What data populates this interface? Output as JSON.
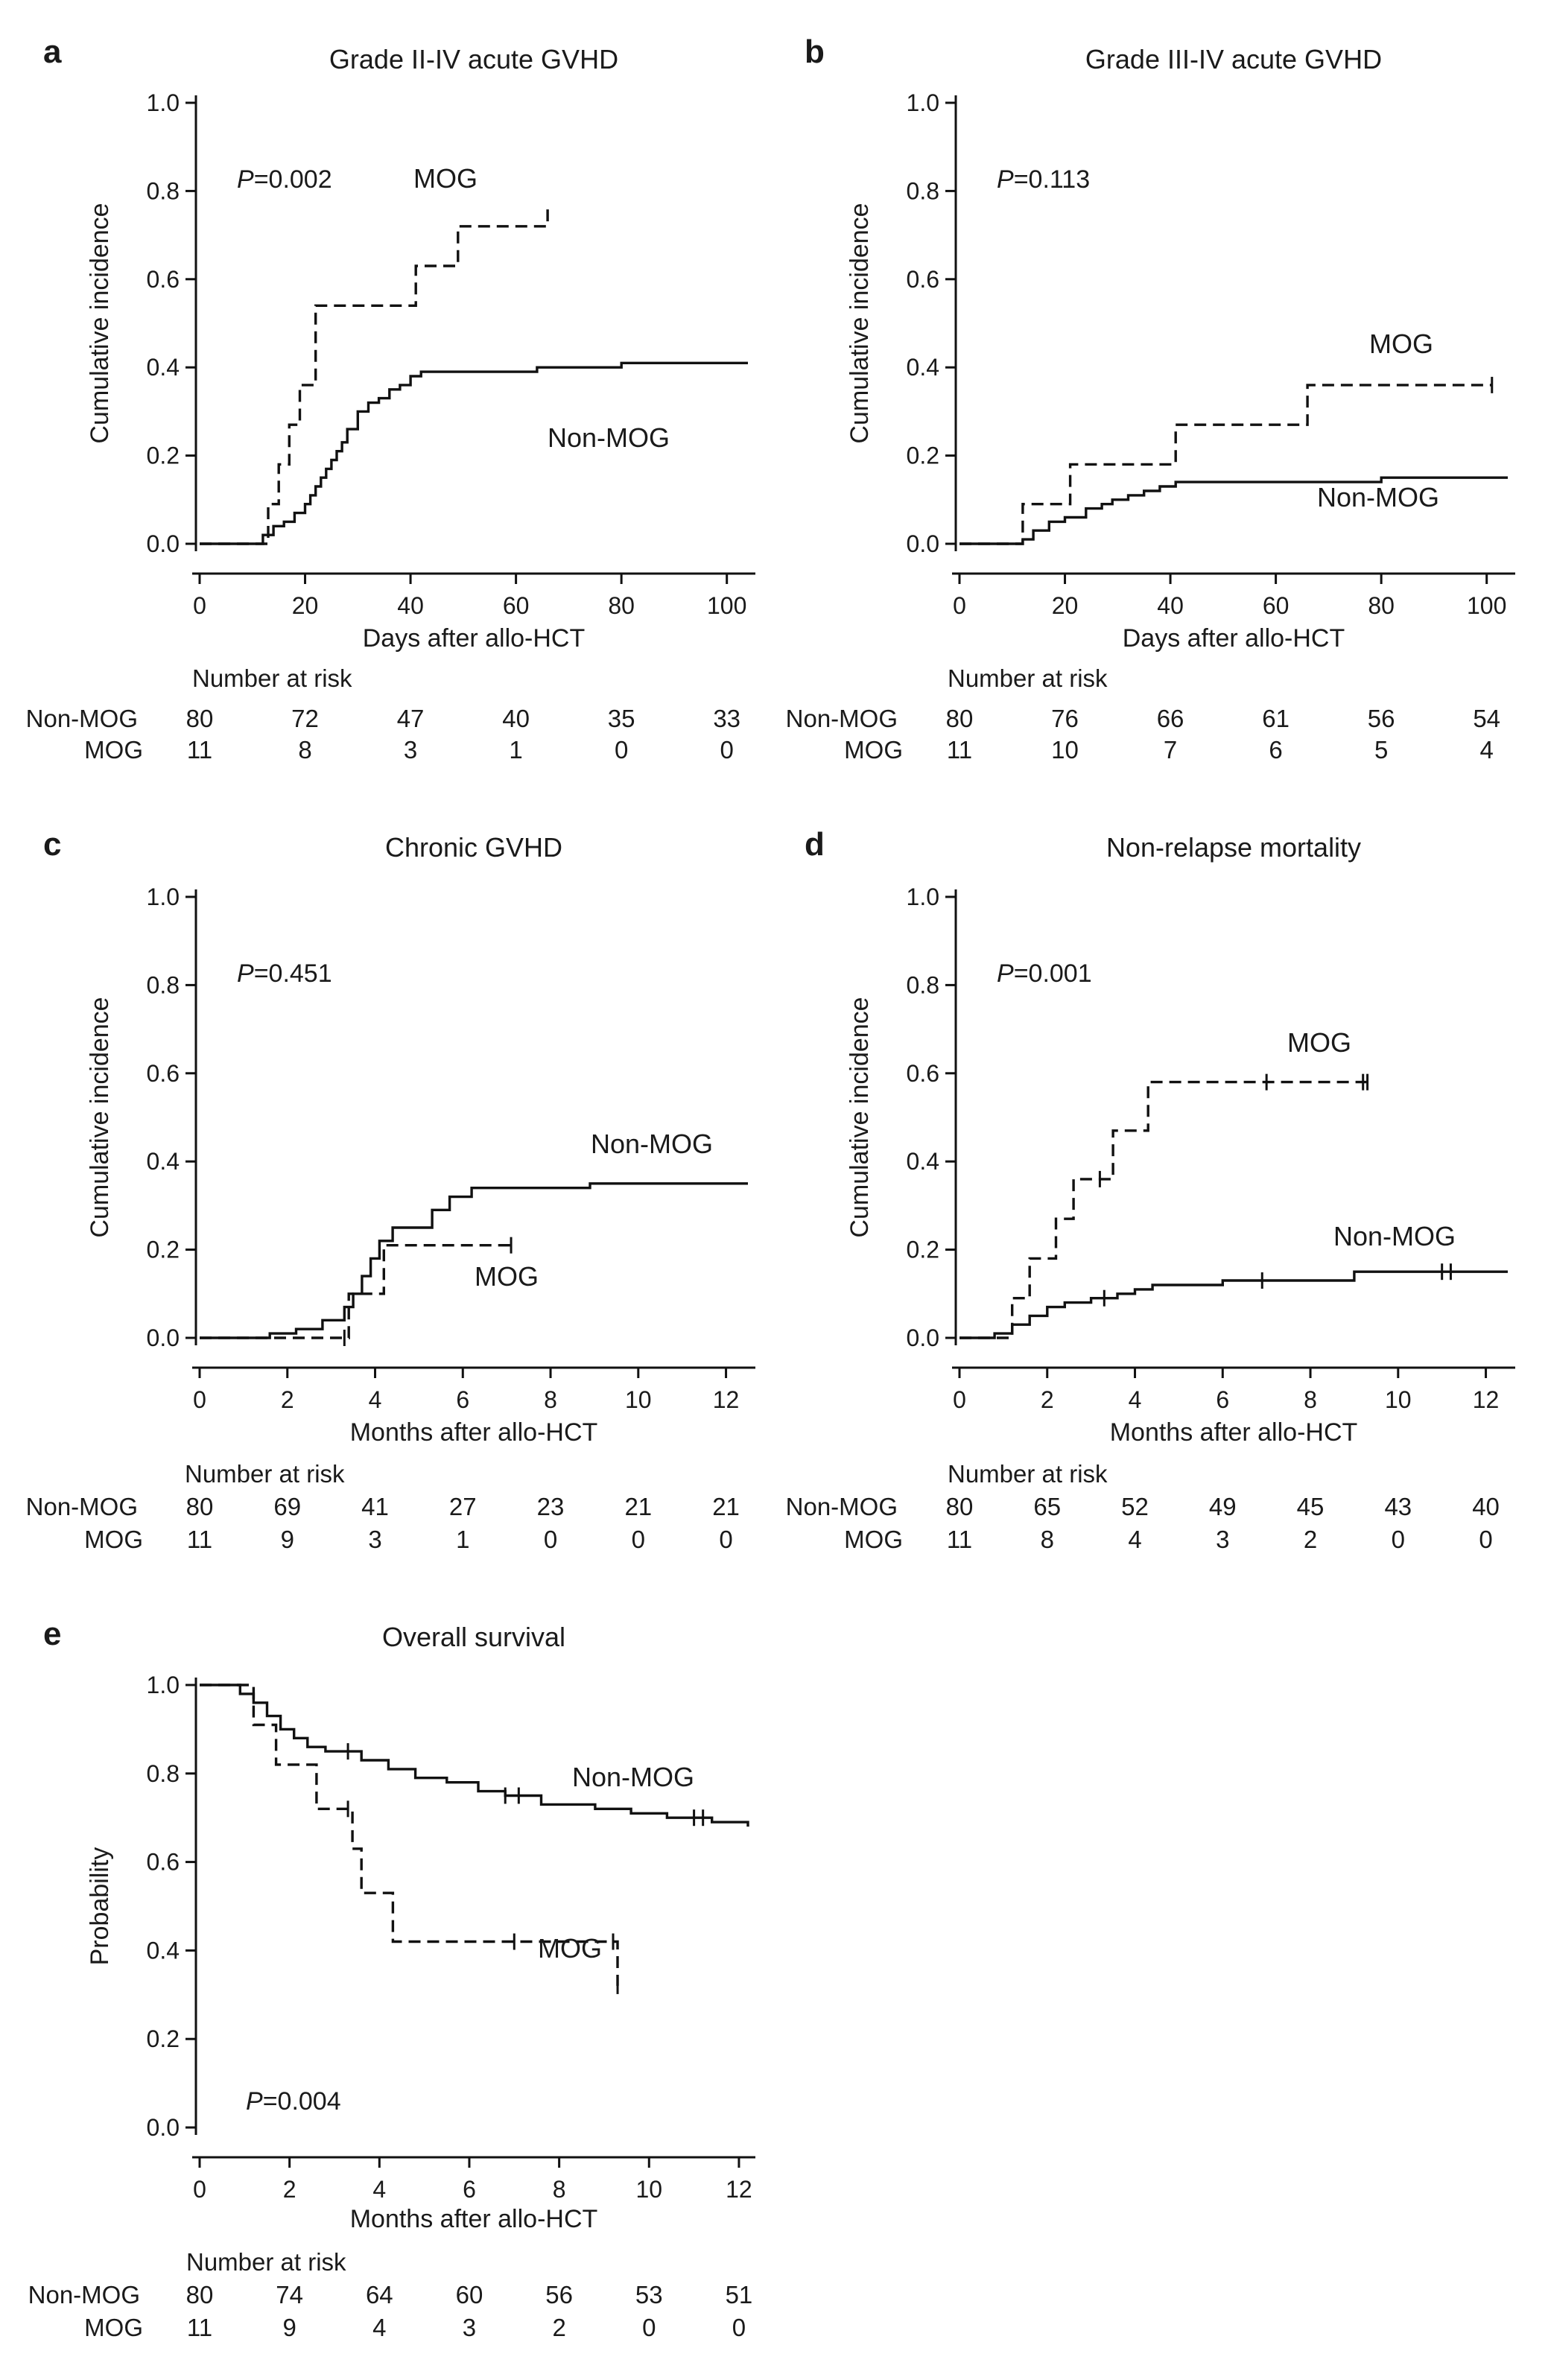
{
  "chart_data": [
    {
      "type": "line",
      "step": true,
      "panel": "a",
      "title": "Grade II-IV acute GVHD",
      "xlabel": "Days after allo-HCT",
      "ylabel": "Cumulative incidence",
      "xlim": [
        0,
        104
      ],
      "ylim": [
        0,
        1.0
      ],
      "xticks": [
        0,
        20,
        40,
        60,
        80,
        100
      ],
      "yticks": [
        0.0,
        0.2,
        0.4,
        0.6,
        0.8,
        1.0
      ],
      "xtick_labels": [
        "0",
        "20",
        "40",
        "60",
        "80",
        "100"
      ],
      "ytick_labels": [
        "0.0",
        "0.2",
        "0.4",
        "0.6",
        "0.8",
        "1.0"
      ],
      "p_prefix": "P",
      "p_value": "=0.002",
      "series": [
        {
          "name": "Non-MOG",
          "style": "solid",
          "x": [
            0,
            12,
            14,
            16,
            18,
            20,
            21,
            22,
            23,
            24,
            25,
            26,
            27,
            28,
            30,
            32,
            34,
            36,
            38,
            40,
            42,
            55,
            64,
            80,
            104
          ],
          "y": [
            0,
            0.02,
            0.04,
            0.05,
            0.07,
            0.09,
            0.11,
            0.13,
            0.15,
            0.17,
            0.19,
            0.21,
            0.23,
            0.26,
            0.3,
            0.32,
            0.33,
            0.35,
            0.36,
            0.38,
            0.39,
            0.39,
            0.4,
            0.41,
            0.41
          ],
          "censor_x": []
        },
        {
          "name": "MOG",
          "style": "dashed",
          "x": [
            0,
            13,
            15,
            17,
            19,
            22,
            41,
            49,
            66
          ],
          "y": [
            0,
            0.09,
            0.18,
            0.27,
            0.36,
            0.54,
            0.63,
            0.72,
            0.77
          ],
          "censor_x": []
        }
      ],
      "label_non_mog": "Non-MOG",
      "label_mog": "MOG",
      "risk_title": "Number at risk",
      "risk_x": [
        0,
        20,
        40,
        60,
        80,
        100
      ],
      "risk_non_mog_name": "Non-MOG",
      "risk_mog_name": "MOG",
      "risk_non_mog": [
        "80",
        "72",
        "47",
        "40",
        "35",
        "33"
      ],
      "risk_mog": [
        "11",
        "8",
        "3",
        "1",
        "0",
        "0"
      ]
    },
    {
      "type": "line",
      "step": true,
      "panel": "b",
      "title": "Grade III-IV acute GVHD",
      "xlabel": "Days after allo-HCT",
      "ylabel": "Cumulative incidence",
      "xlim": [
        0,
        104
      ],
      "ylim": [
        0,
        1.0
      ],
      "xticks": [
        0,
        20,
        40,
        60,
        80,
        100
      ],
      "yticks": [
        0.0,
        0.2,
        0.4,
        0.6,
        0.8,
        1.0
      ],
      "xtick_labels": [
        "0",
        "20",
        "40",
        "60",
        "80",
        "100"
      ],
      "ytick_labels": [
        "0.0",
        "0.2",
        "0.4",
        "0.6",
        "0.8",
        "1.0"
      ],
      "p_prefix": "P",
      "p_value": "=0.113",
      "series": [
        {
          "name": "Non-MOG",
          "style": "solid",
          "x": [
            0,
            12,
            14,
            17,
            20,
            24,
            27,
            29,
            32,
            35,
            38,
            41,
            55,
            80,
            104
          ],
          "y": [
            0,
            0.01,
            0.03,
            0.05,
            0.06,
            0.08,
            0.09,
            0.1,
            0.11,
            0.12,
            0.13,
            0.14,
            0.14,
            0.15,
            0.15
          ],
          "censor_x": []
        },
        {
          "name": "MOG",
          "style": "dashed",
          "x": [
            0,
            12,
            21,
            41,
            66,
            101
          ],
          "y": [
            0,
            0.09,
            0.18,
            0.27,
            0.36,
            0.36
          ],
          "censor_x": [
            101
          ]
        }
      ],
      "label_non_mog": "Non-MOG",
      "label_mog": "MOG",
      "risk_title": "Number at risk",
      "risk_x": [
        0,
        20,
        40,
        60,
        80,
        100
      ],
      "risk_non_mog_name": "Non-MOG",
      "risk_mog_name": "MOG",
      "risk_non_mog": [
        "80",
        "76",
        "66",
        "61",
        "56",
        "54"
      ],
      "risk_mog": [
        "11",
        "10",
        "7",
        "6",
        "5",
        "4"
      ]
    },
    {
      "type": "line",
      "step": true,
      "panel": "c",
      "title": "Chronic GVHD",
      "xlabel": "Months after allo-HCT",
      "ylabel": "Cumulative incidence",
      "xlim": [
        0,
        12.5
      ],
      "ylim": [
        0,
        1.0
      ],
      "xticks": [
        0,
        2,
        4,
        6,
        8,
        10,
        12
      ],
      "yticks": [
        0.0,
        0.2,
        0.4,
        0.6,
        0.8,
        1.0
      ],
      "xtick_labels": [
        "0",
        "2",
        "4",
        "6",
        "8",
        "10",
        "12"
      ],
      "ytick_labels": [
        "0.0",
        "0.2",
        "0.4",
        "0.6",
        "0.8",
        "1.0"
      ],
      "p_prefix": "P",
      "p_value": "=0.451",
      "series": [
        {
          "name": "Non-MOG",
          "style": "solid",
          "x": [
            0,
            1.6,
            2.2,
            2.8,
            3.3,
            3.5,
            3.7,
            3.9,
            4.1,
            4.4,
            5.3,
            5.7,
            6.2,
            8.9,
            12.5
          ],
          "y": [
            0,
            0.01,
            0.02,
            0.04,
            0.07,
            0.1,
            0.14,
            0.18,
            0.22,
            0.25,
            0.29,
            0.32,
            0.34,
            0.35,
            0.35
          ],
          "censor_x": []
        },
        {
          "name": "MOG",
          "style": "dashed",
          "x": [
            0,
            1.8,
            3.4,
            4.2,
            7.1
          ],
          "y": [
            0,
            0.0,
            0.1,
            0.21,
            0.21
          ],
          "censor_x": [
            3.3,
            7.1
          ]
        }
      ],
      "label_non_mog": "Non-MOG",
      "label_mog": "MOG",
      "risk_title": "Number at risk",
      "risk_x": [
        0,
        2,
        4,
        6,
        8,
        10,
        12
      ],
      "risk_non_mog_name": "Non-MOG",
      "risk_mog_name": "MOG",
      "risk_non_mog": [
        "80",
        "69",
        "41",
        "27",
        "23",
        "21",
        "21"
      ],
      "risk_mog": [
        "11",
        "9",
        "3",
        "1",
        "0",
        "0",
        "0"
      ]
    },
    {
      "type": "line",
      "step": true,
      "panel": "d",
      "title": "Non-relapse mortality",
      "xlabel": "Months after allo-HCT",
      "ylabel": "Cumulative incidence",
      "xlim": [
        0,
        12.5
      ],
      "ylim": [
        0,
        1.0
      ],
      "xticks": [
        0,
        2,
        4,
        6,
        8,
        10,
        12
      ],
      "yticks": [
        0.0,
        0.2,
        0.4,
        0.6,
        0.8,
        1.0
      ],
      "xtick_labels": [
        "0",
        "2",
        "4",
        "6",
        "8",
        "10",
        "12"
      ],
      "ytick_labels": [
        "0.0",
        "0.2",
        "0.4",
        "0.6",
        "0.8",
        "1.0"
      ],
      "p_prefix": "P",
      "p_value": "=0.001",
      "series": [
        {
          "name": "Non-MOG",
          "style": "solid",
          "x": [
            0,
            0.8,
            1.2,
            1.6,
            2.0,
            2.4,
            3.0,
            3.6,
            4.0,
            4.4,
            6.0,
            9.0,
            12.5
          ],
          "y": [
            0,
            0.01,
            0.03,
            0.05,
            0.07,
            0.08,
            0.09,
            0.1,
            0.11,
            0.12,
            0.13,
            0.15,
            0.15
          ],
          "censor_x": [
            3.3,
            6.9,
            11.0,
            11.2
          ]
        },
        {
          "name": "MOG",
          "style": "dashed",
          "x": [
            0,
            1.2,
            1.6,
            2.2,
            2.6,
            3.5,
            4.3,
            9.3
          ],
          "y": [
            0,
            0.09,
            0.18,
            0.27,
            0.36,
            0.47,
            0.58,
            0.58
          ],
          "censor_x": [
            3.2,
            7.0,
            9.2,
            9.3
          ]
        }
      ],
      "label_non_mog": "Non-MOG",
      "label_mog": "MOG",
      "risk_title": "Number at risk",
      "risk_x": [
        0,
        2,
        4,
        6,
        8,
        10,
        12
      ],
      "risk_non_mog_name": "Non-MOG",
      "risk_mog_name": "MOG",
      "risk_non_mog": [
        "80",
        "65",
        "52",
        "49",
        "45",
        "43",
        "40"
      ],
      "risk_mog": [
        "11",
        "8",
        "4",
        "3",
        "2",
        "0",
        "0"
      ]
    },
    {
      "type": "line",
      "step": true,
      "panel": "e",
      "title": "Overall survival",
      "xlabel": "Months after allo-HCT",
      "ylabel": "Probability",
      "xlim": [
        0,
        12.2
      ],
      "ylim": [
        0,
        1.0
      ],
      "xticks": [
        0,
        2,
        4,
        6,
        8,
        10,
        12
      ],
      "yticks": [
        0.0,
        0.2,
        0.4,
        0.6,
        0.8,
        1.0
      ],
      "xtick_labels": [
        "0",
        "2",
        "4",
        "6",
        "8",
        "10",
        "12"
      ],
      "ytick_labels": [
        "0.0",
        "0.2",
        "0.4",
        "0.6",
        "0.8",
        "1.0"
      ],
      "p_prefix": "P",
      "p_value": "=0.004",
      "series": [
        {
          "name": "Non-MOG",
          "style": "solid",
          "x": [
            0,
            0.9,
            1.2,
            1.5,
            1.8,
            2.1,
            2.4,
            2.8,
            3.6,
            4.2,
            4.8,
            5.5,
            6.2,
            6.8,
            7.6,
            8.8,
            9.6,
            10.4,
            11.4,
            12.2
          ],
          "y": [
            1.0,
            0.98,
            0.96,
            0.93,
            0.9,
            0.88,
            0.86,
            0.85,
            0.83,
            0.81,
            0.79,
            0.78,
            0.76,
            0.75,
            0.73,
            0.72,
            0.71,
            0.7,
            0.69,
            0.68
          ],
          "censor_x": [
            3.3,
            6.8,
            7.1,
            11.0,
            11.2
          ]
        },
        {
          "name": "MOG",
          "style": "dashed",
          "x": [
            0,
            1.2,
            1.7,
            2.6,
            3.4,
            3.6,
            4.3,
            9.3
          ],
          "y": [
            1.0,
            0.91,
            0.82,
            0.72,
            0.63,
            0.53,
            0.42,
            0.32
          ],
          "censor_x": [
            3.3,
            7.0,
            9.2,
            9.3
          ]
        }
      ],
      "label_non_mog": "Non-MOG",
      "label_mog": "MOG",
      "risk_title": "Number at risk",
      "risk_x": [
        0,
        2,
        4,
        6,
        8,
        10,
        12
      ],
      "risk_non_mog_name": "Non-MOG",
      "risk_mog_name": "MOG",
      "risk_non_mog": [
        "80",
        "74",
        "64",
        "60",
        "56",
        "53",
        "51"
      ],
      "risk_mog": [
        "11",
        "9",
        "4",
        "3",
        "2",
        "0",
        "0"
      ]
    }
  ]
}
